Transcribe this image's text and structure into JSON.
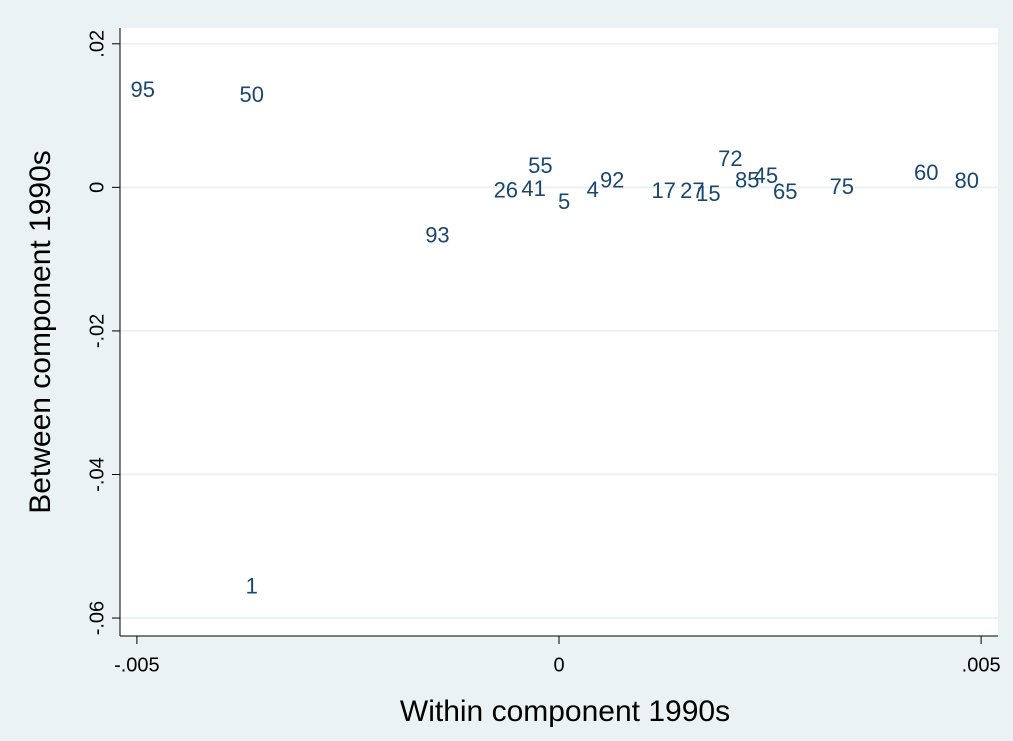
{
  "chart_data": {
    "type": "scatter",
    "x_label": "Within component 1990s",
    "y_label": "Between component 1990s",
    "series": [
      {
        "color": "#1a476f",
        "x": [
          -0.00493,
          -0.00364,
          -0.00022,
          0.00203,
          0.00245,
          0.00223,
          0.00063,
          0.00124,
          0.00158,
          0.00177,
          0.00268,
          0.00335,
          0.00435,
          0.00483,
          -0.00144,
          -0.00364,
          -0.00063,
          6e-05,
          -0.0003,
          0.0004
        ],
        "values": [
          0.0134,
          0.0127,
          0.0028,
          0.0038,
          0.0014,
          0.0008,
          0.0008,
          -0.0007,
          -0.0007,
          -0.0011,
          -0.0008,
          -0.0001,
          0.0018,
          0.0007,
          -0.0069,
          -0.0558,
          -0.0006,
          -0.0022,
          -0.0004,
          -0.0005
        ],
        "labels": [
          "95",
          "50",
          "55",
          "72",
          "45",
          "85",
          "92",
          "17",
          "27",
          "15",
          "65",
          "75",
          "60",
          "80",
          "93",
          "1",
          "26",
          "5",
          "41",
          "4"
        ]
      }
    ],
    "xlim": [
      -0.0052,
      0.0052
    ],
    "ylim": [
      -0.0625,
      0.0222
    ],
    "xticks": [
      {
        "value": -0.005,
        "label": "-.005"
      },
      0,
      {
        "value": 0.005,
        "label": ".005"
      }
    ],
    "yticks": [
      {
        "value": 0.02,
        "label": ".02"
      },
      0,
      {
        "value": -0.02,
        "label": "-.02"
      },
      {
        "value": -0.04,
        "label": "-.04"
      },
      {
        "value": -0.06,
        "label": "-.06"
      }
    ],
    "grid": true
  }
}
